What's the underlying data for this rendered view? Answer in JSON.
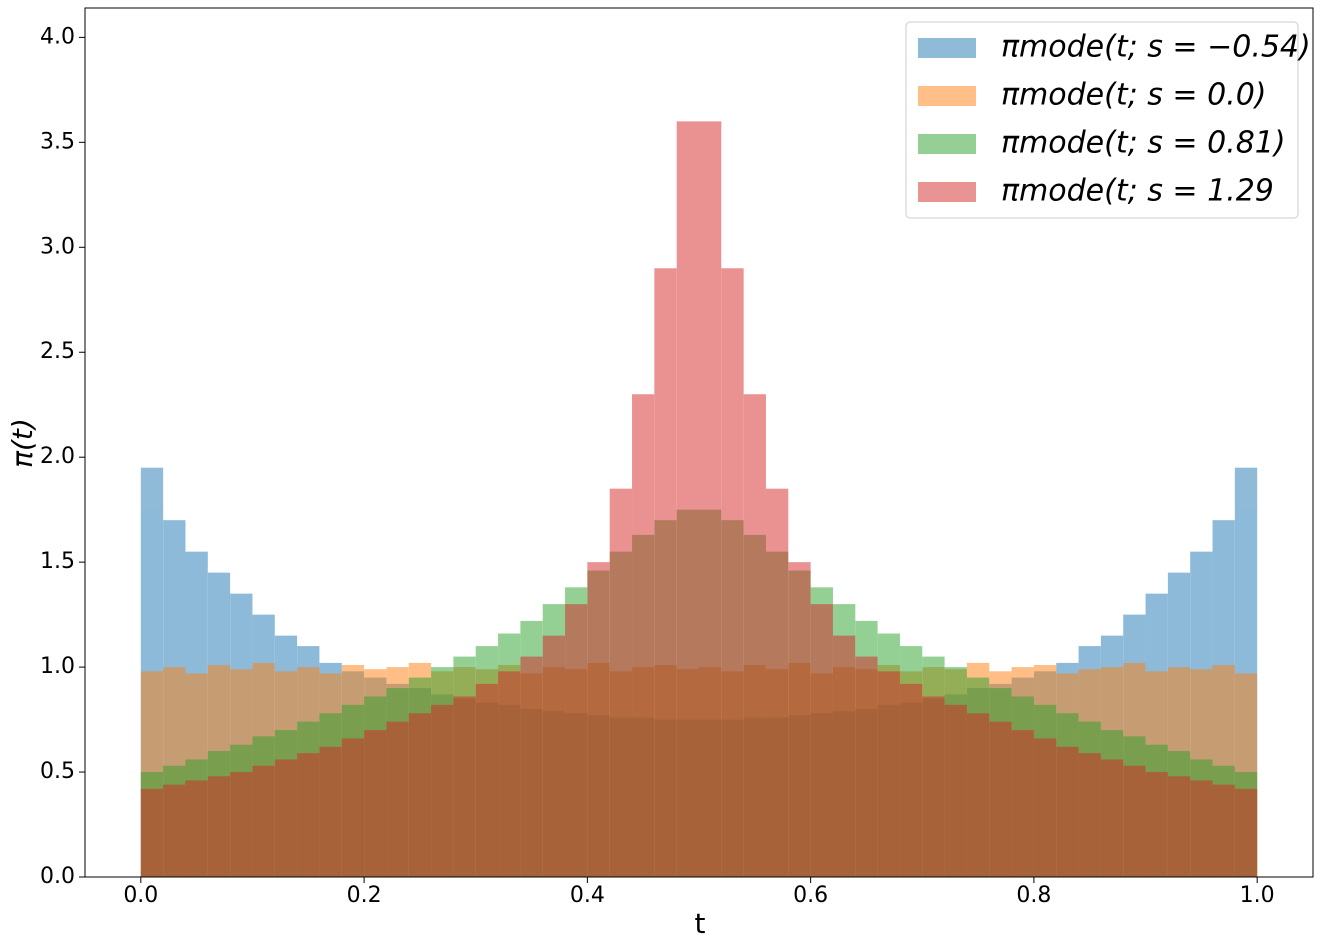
{
  "chart_data": {
    "type": "histogram",
    "xlabel": "t",
    "ylabel": "π(t)",
    "bins": [
      0,
      0.02,
      0.04,
      0.06,
      0.08,
      0.1,
      0.12,
      0.14,
      0.16,
      0.18,
      0.2,
      0.22,
      0.24,
      0.26,
      0.28,
      0.3,
      0.32,
      0.34,
      0.36,
      0.38,
      0.4,
      0.42,
      0.44,
      0.46,
      0.48,
      0.5,
      0.52,
      0.54,
      0.56,
      0.58,
      0.6,
      0.62,
      0.64,
      0.66,
      0.68,
      0.7,
      0.72,
      0.74,
      0.76,
      0.78,
      0.8,
      0.82,
      0.84,
      0.86,
      0.88,
      0.9,
      0.92,
      0.94,
      0.96,
      0.98,
      1.0
    ],
    "series": [
      {
        "name": "πmode(t; s = −0.54)",
        "color": "#1f77b4",
        "values": [
          1.95,
          1.7,
          1.55,
          1.45,
          1.35,
          1.25,
          1.15,
          1.1,
          1.02,
          0.98,
          0.95,
          0.92,
          0.9,
          0.87,
          0.85,
          0.83,
          0.82,
          0.8,
          0.79,
          0.78,
          0.77,
          0.76,
          0.76,
          0.75,
          0.75,
          0.75,
          0.75,
          0.76,
          0.76,
          0.77,
          0.78,
          0.79,
          0.8,
          0.82,
          0.83,
          0.85,
          0.87,
          0.9,
          0.92,
          0.95,
          0.98,
          1.02,
          1.1,
          1.15,
          1.25,
          1.35,
          1.45,
          1.55,
          1.7,
          1.95
        ]
      },
      {
        "name": "πmode(t; s = 0.0)",
        "color": "#ff7f0e",
        "values": [
          0.98,
          1.0,
          0.97,
          1.01,
          0.99,
          1.02,
          0.98,
          1.0,
          0.97,
          1.01,
          0.99,
          1.0,
          1.02,
          0.98,
          1.0,
          0.99,
          1.01,
          0.97,
          1.0,
          0.99,
          1.02,
          0.98,
          1.0,
          1.01,
          0.99,
          1.0,
          0.98,
          1.01,
          0.99,
          1.02,
          0.97,
          1.0,
          0.99,
          1.01,
          0.98,
          1.0,
          0.99,
          1.02,
          0.98,
          1.0,
          1.01,
          0.97,
          0.99,
          1.0,
          1.02,
          0.98,
          1.0,
          0.99,
          1.01,
          0.97
        ]
      },
      {
        "name": "πmode(t; s = 0.81)",
        "color": "#2ca02c",
        "values": [
          0.5,
          0.53,
          0.56,
          0.6,
          0.63,
          0.67,
          0.7,
          0.74,
          0.78,
          0.82,
          0.86,
          0.9,
          0.95,
          1.0,
          1.05,
          1.1,
          1.16,
          1.22,
          1.3,
          1.38,
          1.46,
          1.55,
          1.63,
          1.7,
          1.75,
          1.75,
          1.7,
          1.63,
          1.55,
          1.46,
          1.38,
          1.3,
          1.22,
          1.16,
          1.1,
          1.05,
          1.0,
          0.95,
          0.9,
          0.86,
          0.82,
          0.78,
          0.74,
          0.7,
          0.67,
          0.63,
          0.6,
          0.56,
          0.53,
          0.5
        ]
      },
      {
        "name": "πmode(t; s = 1.29",
        "color": "#d62728",
        "values": [
          0.42,
          0.44,
          0.46,
          0.48,
          0.5,
          0.53,
          0.56,
          0.59,
          0.62,
          0.66,
          0.7,
          0.74,
          0.78,
          0.82,
          0.86,
          0.92,
          0.98,
          1.05,
          1.15,
          1.3,
          1.5,
          1.85,
          2.3,
          2.9,
          3.6,
          3.6,
          2.9,
          2.3,
          1.85,
          1.5,
          1.3,
          1.15,
          1.05,
          0.98,
          0.92,
          0.86,
          0.82,
          0.78,
          0.74,
          0.7,
          0.66,
          0.62,
          0.59,
          0.56,
          0.53,
          0.5,
          0.48,
          0.46,
          0.44,
          0.42
        ]
      }
    ],
    "alpha": 0.5,
    "xlim": [
      -0.05,
      1.05
    ],
    "ylim": [
      0,
      4.14
    ],
    "xticks": [
      {
        "value": 0,
        "label": "0.0"
      },
      0.2,
      0.4,
      0.6,
      0.8,
      {
        "value": 1,
        "label": "1.0"
      }
    ],
    "yticks": [
      {
        "value": 0,
        "label": "0.0"
      },
      0.5,
      {
        "value": 1,
        "label": "1.0"
      },
      1.5,
      {
        "value": 2,
        "label": "2.0"
      },
      2.5,
      {
        "value": 3,
        "label": "3.0"
      },
      3.5,
      {
        "value": 4,
        "label": "4.0"
      }
    ],
    "legend": "upper right",
    "grid": false
  }
}
